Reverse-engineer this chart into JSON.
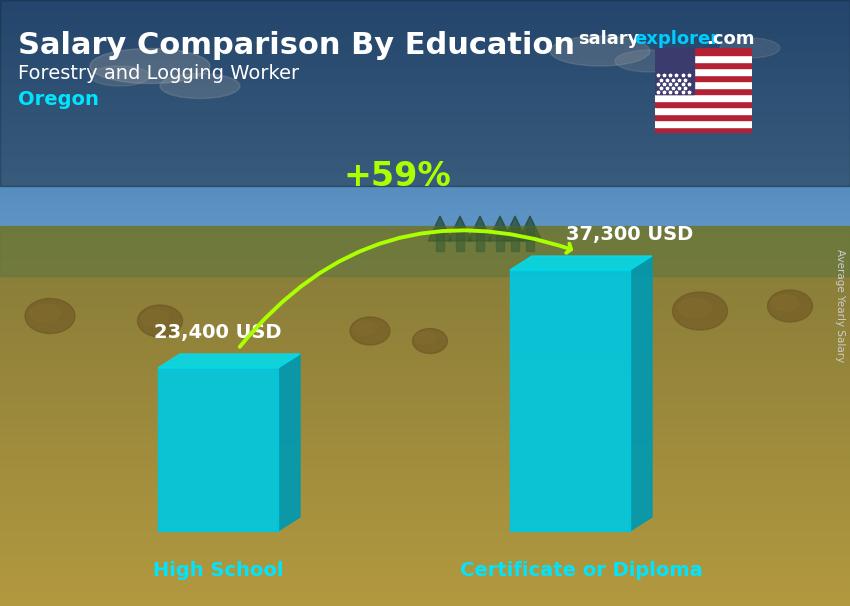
{
  "title_main": "Salary Comparison By Education",
  "title_sub": "Forestry and Logging Worker",
  "title_location": "Oregon",
  "watermark_salary": "salary",
  "watermark_explorer": "explorer",
  "watermark_com": ".com",
  "ylabel_rotated": "Average Yearly Salary",
  "categories": [
    "High School",
    "Certificate or Diploma"
  ],
  "values": [
    23400,
    37300
  ],
  "value_labels": [
    "23,400 USD",
    "37,300 USD"
  ],
  "pct_change": "+59%",
  "bar_color_face": "#00c8e0",
  "bar_color_right": "#0099b0",
  "bar_color_top": "#00ddf0",
  "title_color": "#ffffff",
  "subtitle_color": "#ffffff",
  "location_color": "#00e5ff",
  "watermark_salary_color": "#ffffff",
  "watermark_explorer_color": "#00ccff",
  "watermark_com_color": "#ffffff",
  "label_color": "#ffffff",
  "xticklabel_color": "#00e5ff",
  "pct_color": "#aaff00",
  "arrow_color": "#aaff00",
  "side_label_color": "#cccccc",
  "figsize": [
    8.5,
    6.06
  ],
  "dpi": 100,
  "sky_top": "#3a6fa0",
  "sky_bottom": "#5090b8",
  "field_color": "#9a8040",
  "midground_color": "#7a9050",
  "horizon_color": "#4a7060"
}
